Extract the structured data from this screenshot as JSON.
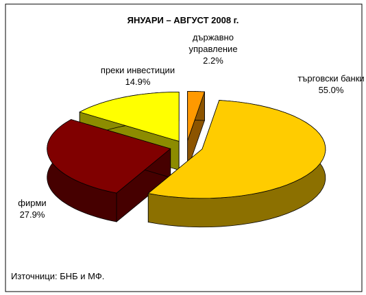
{
  "chart_data": {
    "type": "pie",
    "title": "ЯНУАРИ – АВГУСТ  2008 г.",
    "categories": [
      "държавно управление",
      "търговски банки",
      "фирми",
      "преки инвестиции"
    ],
    "values": [
      2.2,
      55.0,
      27.9,
      14.9
    ],
    "value_labels": [
      "2.2%",
      "55.0%",
      "27.9%",
      "14.9%"
    ],
    "colors": [
      "#ff9900",
      "#ffcc00",
      "#800000",
      "#ffff00"
    ],
    "annotation": "Източници: БНБ и МФ."
  }
}
